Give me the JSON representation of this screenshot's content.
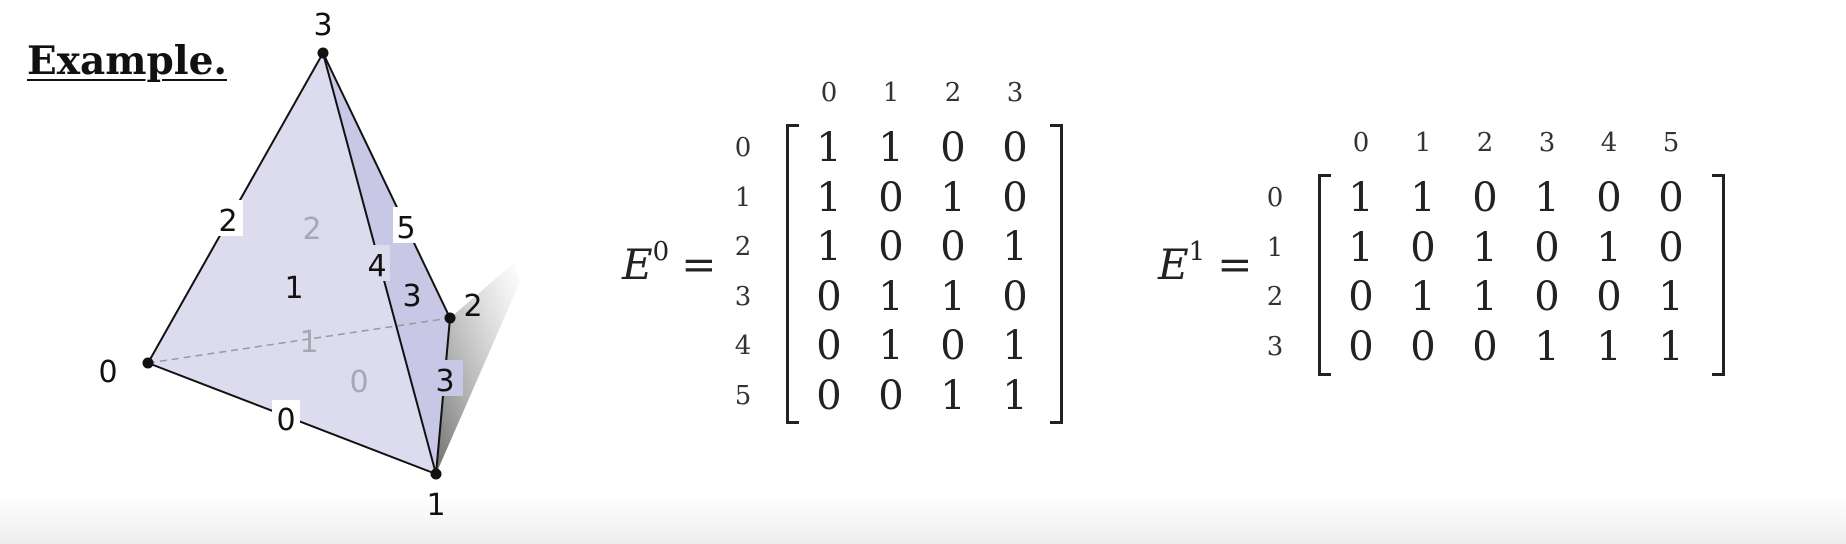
{
  "heading": "Example.",
  "tetrahedron": {
    "vertex_labels": [
      "0",
      "1",
      "2",
      "3"
    ],
    "edge_labels": [
      "0",
      "1",
      "2",
      "3",
      "4",
      "5"
    ],
    "face_labels": [
      "0",
      "1",
      "2",
      "3"
    ],
    "colors": {
      "face_fill": "#c8c8e6",
      "hidden_text": "#a8a8b4",
      "shadow": "#666666"
    }
  },
  "matrices": [
    {
      "name": "E",
      "superscript": "0",
      "equals": "=",
      "col_headers": [
        "0",
        "1",
        "2",
        "3"
      ],
      "row_headers": [
        "0",
        "1",
        "2",
        "3",
        "4",
        "5"
      ],
      "rows": [
        [
          "1",
          "1",
          "0",
          "0"
        ],
        [
          "1",
          "0",
          "1",
          "0"
        ],
        [
          "1",
          "0",
          "0",
          "1"
        ],
        [
          "0",
          "1",
          "1",
          "0"
        ],
        [
          "0",
          "1",
          "0",
          "1"
        ],
        [
          "0",
          "0",
          "1",
          "1"
        ]
      ]
    },
    {
      "name": "E",
      "superscript": "1",
      "equals": "=",
      "col_headers": [
        "0",
        "1",
        "2",
        "3",
        "4",
        "5"
      ],
      "row_headers": [
        "0",
        "1",
        "2",
        "3"
      ],
      "rows": [
        [
          "1",
          "1",
          "0",
          "1",
          "0",
          "0"
        ],
        [
          "1",
          "0",
          "1",
          "0",
          "1",
          "0"
        ],
        [
          "0",
          "1",
          "1",
          "0",
          "0",
          "1"
        ],
        [
          "0",
          "0",
          "0",
          "1",
          "1",
          "1"
        ]
      ]
    }
  ]
}
